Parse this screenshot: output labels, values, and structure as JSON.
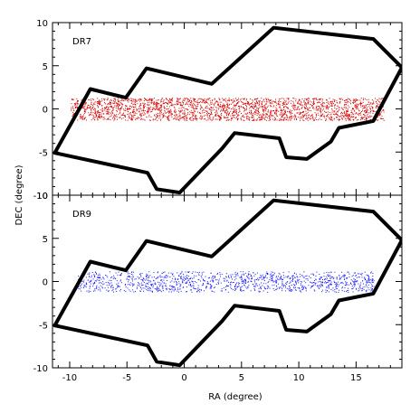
{
  "figure": {
    "xlabel": "RA (degree)",
    "ylabel": "DEC (degree)"
  },
  "chart_data": [
    {
      "type": "scatter",
      "panel_label": "DR7",
      "xlim": [
        -11.5,
        19
      ],
      "ylim": [
        -10,
        10
      ],
      "xticks": [
        -10,
        -5,
        0,
        5,
        10,
        15
      ],
      "yticks": [
        -10,
        -5,
        0,
        5,
        10
      ],
      "xtick_labels": [
        "-10",
        "-5",
        "0",
        "5",
        "10",
        "15"
      ],
      "ytick_labels": [
        "-10",
        "-5",
        "0",
        "5",
        "10"
      ],
      "grid": false,
      "outline": {
        "color": "#000000",
        "points": [
          [
            -11.3,
            -5.1
          ],
          [
            -8.2,
            2.3
          ],
          [
            -5.1,
            1.3
          ],
          [
            -3.3,
            4.7
          ],
          [
            2.4,
            2.9
          ],
          [
            7.8,
            9.4
          ],
          [
            16.5,
            8.1
          ],
          [
            19,
            4.8
          ],
          [
            16.5,
            -1.4
          ],
          [
            13.5,
            -2.2
          ],
          [
            12.8,
            -3.8
          ],
          [
            10.7,
            -5.8
          ],
          [
            8.9,
            -5.6
          ],
          [
            8.3,
            -3.4
          ],
          [
            4.4,
            -2.8
          ],
          [
            3.3,
            -4.6
          ],
          [
            -0.4,
            -9.7
          ],
          [
            -2.4,
            -9.3
          ],
          [
            -3.2,
            -7.4
          ],
          [
            -11.3,
            -5.1
          ]
        ]
      },
      "scatter": {
        "color": "#d40000",
        "ra_range": [
          -9.9,
          17.4
        ],
        "dec_range": [
          -1.3,
          1.3
        ],
        "density": "dense",
        "approx_count": 2500
      }
    },
    {
      "type": "scatter",
      "panel_label": "DR9",
      "xlim": [
        -11.5,
        19
      ],
      "ylim": [
        -10,
        10
      ],
      "xticks": [
        -10,
        -5,
        0,
        5,
        10,
        15
      ],
      "yticks": [
        -10,
        -5,
        0,
        5,
        10
      ],
      "xtick_labels": [
        "-10",
        "-5",
        "0",
        "5",
        "10",
        "15"
      ],
      "ytick_labels": [
        "-10",
        "-5",
        "0",
        "5",
        "10"
      ],
      "grid": false,
      "outline": {
        "color": "#000000",
        "points": [
          [
            -11.3,
            -5.1
          ],
          [
            -8.2,
            2.3
          ],
          [
            -5.1,
            1.3
          ],
          [
            -3.3,
            4.7
          ],
          [
            2.4,
            2.9
          ],
          [
            7.8,
            9.4
          ],
          [
            16.5,
            8.1
          ],
          [
            19,
            4.8
          ],
          [
            16.5,
            -1.4
          ],
          [
            13.5,
            -2.2
          ],
          [
            12.8,
            -3.8
          ],
          [
            10.7,
            -5.8
          ],
          [
            8.9,
            -5.6
          ],
          [
            8.3,
            -3.4
          ],
          [
            4.4,
            -2.8
          ],
          [
            3.3,
            -4.6
          ],
          [
            -0.4,
            -9.7
          ],
          [
            -2.4,
            -9.3
          ],
          [
            -3.2,
            -7.4
          ],
          [
            -11.3,
            -5.1
          ]
        ]
      },
      "scatter": {
        "color": "#1a1aff",
        "ra_range": [
          -9.3,
          16.6
        ],
        "dec_range": [
          -1.2,
          1.2
        ],
        "density": "sparse",
        "approx_count": 1300
      }
    }
  ]
}
